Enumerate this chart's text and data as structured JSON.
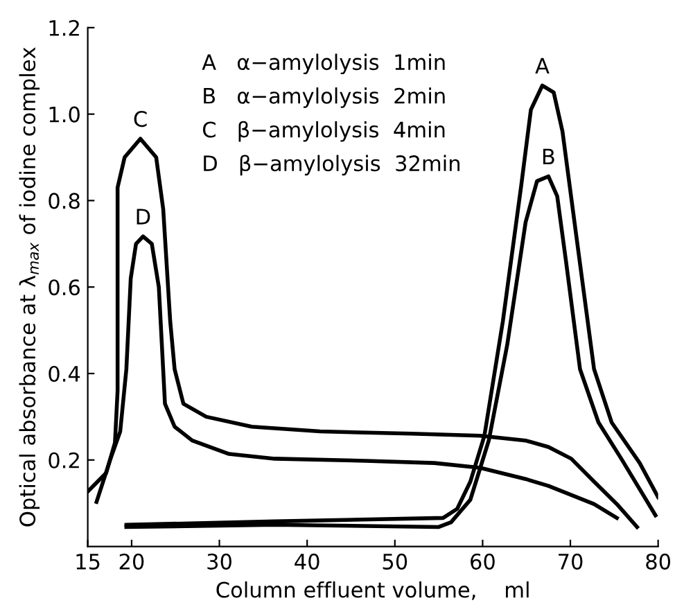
{
  "chart_data": {
    "type": "line",
    "xlabel": "Column effluent volume,    ml",
    "ylabel": "Optical absorbance at λ$_{max}$ of iodine complex",
    "xlim": [
      15,
      80
    ],
    "xticks": [
      15,
      20,
      30,
      40,
      50,
      60,
      70,
      80
    ],
    "ylim": [
      0,
      1.2
    ],
    "yticks": [
      0.2,
      0.4,
      0.6,
      0.8,
      {
        "value": 1,
        "label": "1.0"
      },
      1.2
    ],
    "grid": false,
    "legend": false,
    "marker": "none",
    "line_style": "solid",
    "series": [
      {
        "name": "A",
        "color": "#000000",
        "x": [
          19.4,
          36.3,
          55.5,
          57.1,
          58.6,
          60.2,
          62.3,
          64.4,
          65.5,
          66.8,
          68.1,
          69.1,
          70.6,
          72.7,
          74.7,
          77.9,
          80
        ],
        "values": [
          0.05,
          0.058,
          0.066,
          0.087,
          0.15,
          0.256,
          0.52,
          0.835,
          1.01,
          1.066,
          1.05,
          0.96,
          0.73,
          0.41,
          0.287,
          0.193,
          0.114
        ]
      },
      {
        "name": "B",
        "color": "#000000",
        "x": [
          19.4,
          36.3,
          55.0,
          56.4,
          58.6,
          60.7,
          62.8,
          64.9,
          66.2,
          67.5,
          68.5,
          69.5,
          71.1,
          73.2,
          75.8,
          79.7
        ],
        "values": [
          0.045,
          0.05,
          0.045,
          0.056,
          0.108,
          0.245,
          0.466,
          0.75,
          0.845,
          0.856,
          0.81,
          0.66,
          0.41,
          0.287,
          0.203,
          0.072
        ]
      },
      {
        "name": "C",
        "color": "#000000",
        "x": [
          15,
          17.1,
          18.1,
          18.4,
          18.4,
          19.2,
          21,
          22.8,
          23.6,
          24.4,
          24.9,
          25.9,
          28.5,
          33.7,
          41.5,
          51.9,
          59.7,
          64.9,
          67.5,
          70.1,
          72.7,
          75.3,
          77.6
        ],
        "values": [
          0.127,
          0.17,
          0.24,
          0.36,
          0.83,
          0.9,
          0.943,
          0.9,
          0.78,
          0.52,
          0.41,
          0.33,
          0.3,
          0.277,
          0.266,
          0.261,
          0.256,
          0.245,
          0.23,
          0.203,
          0.15,
          0.098,
          0.045
        ]
      },
      {
        "name": "D",
        "color": "#000000",
        "x": [
          16,
          17.6,
          18.7,
          19.4,
          19.9,
          20.5,
          21.3,
          22.3,
          23.1,
          23.8,
          24.9,
          26.9,
          31.1,
          36.3,
          46.7,
          54.5,
          59.7,
          64.9,
          67.5,
          72.7,
          75.3
        ],
        "values": [
          0.103,
          0.203,
          0.266,
          0.41,
          0.62,
          0.7,
          0.717,
          0.7,
          0.6,
          0.33,
          0.277,
          0.245,
          0.214,
          0.203,
          0.198,
          0.193,
          0.182,
          0.156,
          0.14,
          0.098,
          0.066
        ]
      }
    ],
    "annotations": [
      "A   α−amylolysis  1min",
      "B   α−amylolysis  2min",
      "C   β−amylolysis  4min",
      "D   β−amylolysis  32min"
    ]
  }
}
